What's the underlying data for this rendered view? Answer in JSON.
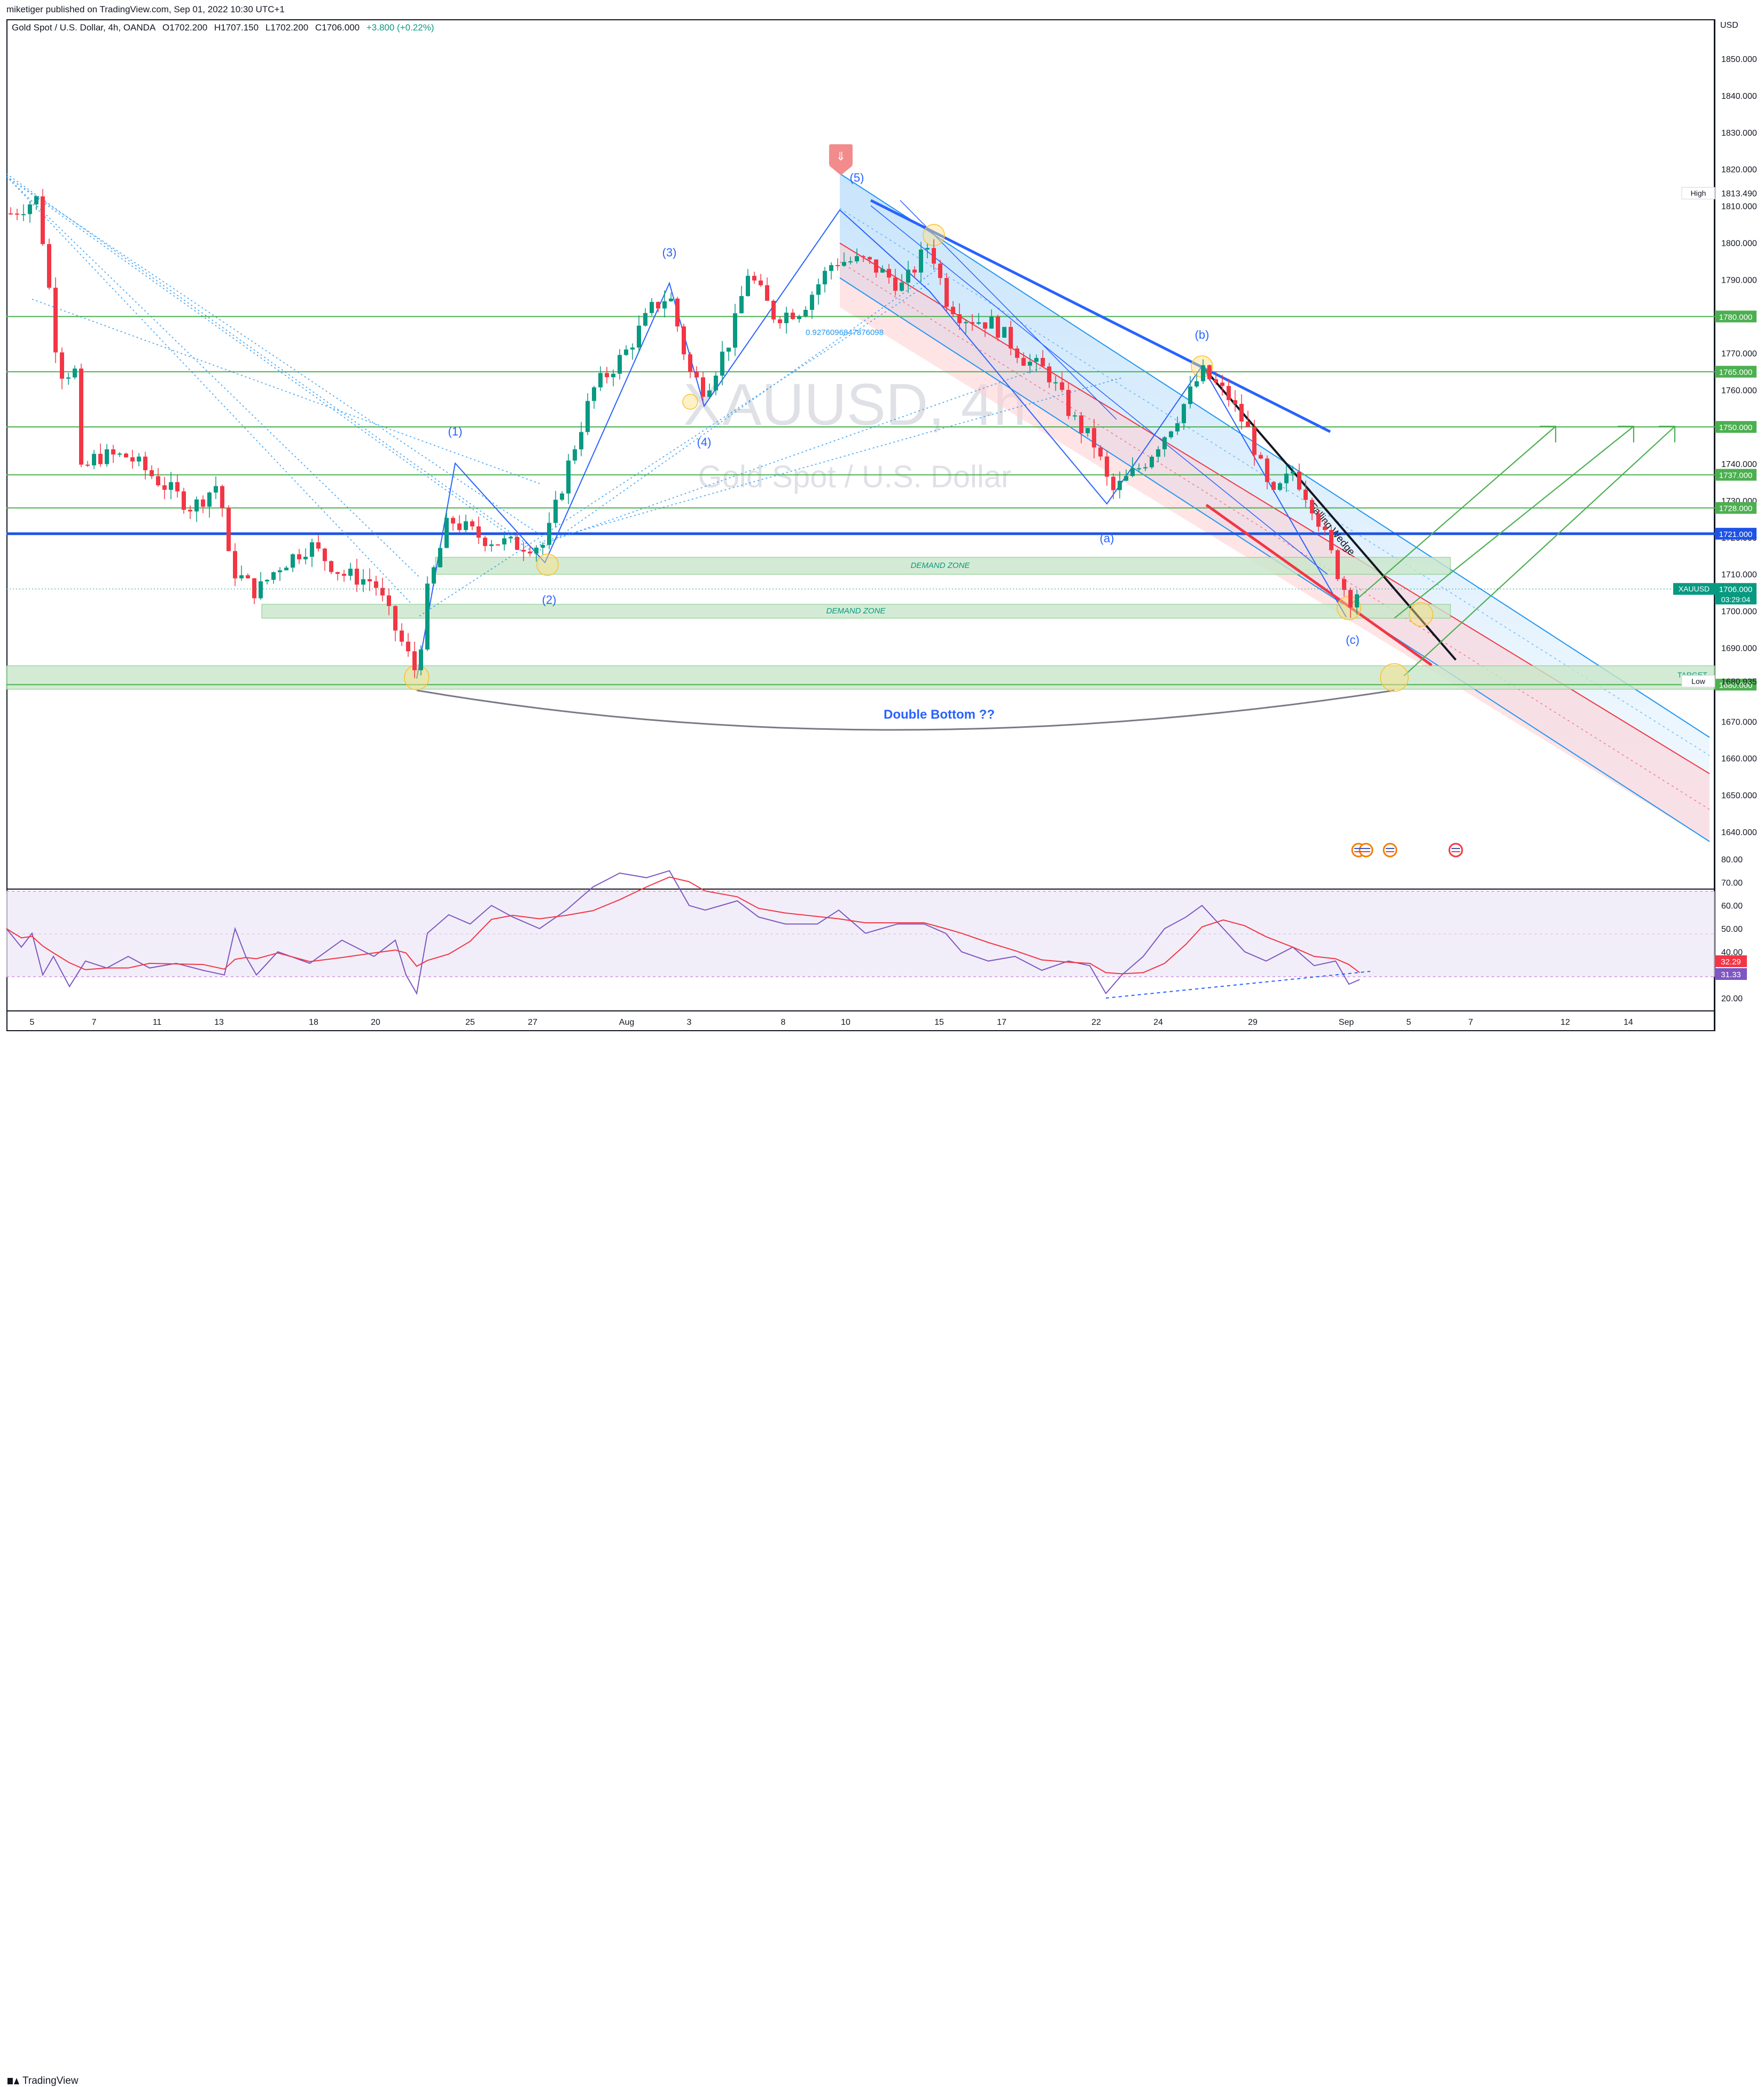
{
  "header": {
    "publisher_text": "miketiger published on TradingView.com, Sep 01, 2022 10:30 UTC+1"
  },
  "symbol_info": {
    "name": "Gold Spot / U.S. Dollar, 4h, OANDA",
    "open": "O1702.200",
    "high": "H1707.150",
    "low": "L1702.200",
    "close": "C1706.000",
    "change": "+3.800 (+0.22%)"
  },
  "watermark": {
    "ticker": "XAUUSD, 4h",
    "description": "Gold Spot / U.S. Dollar"
  },
  "price_axis": {
    "currency": "USD",
    "ticks": [
      "1850.000",
      "1840.000",
      "1830.000",
      "1820.000",
      "1810.000",
      "1800.000",
      "1790.000",
      "1780.000",
      "1770.000",
      "1760.000",
      "1750.000",
      "1740.000",
      "1730.000",
      "1720.000",
      "1710.000",
      "1700.000",
      "1690.000",
      "1680.000",
      "1670.000",
      "1660.000",
      "1650.000",
      "1640.000"
    ],
    "level_tags": [
      {
        "label": "1780.000",
        "value": 1780,
        "color": "#4caf50"
      },
      {
        "label": "1765.000",
        "value": 1765,
        "color": "#4caf50"
      },
      {
        "label": "1750.000",
        "value": 1750,
        "color": "#4caf50"
      },
      {
        "label": "1737.000",
        "value": 1737,
        "color": "#4caf50"
      },
      {
        "label": "1728.000",
        "value": 1728,
        "color": "#4caf50"
      },
      {
        "label": "1721.000",
        "value": 1721,
        "color": "#1e53e5"
      },
      {
        "label": "1680.000",
        "value": 1680,
        "color": "#4caf50"
      }
    ],
    "high_marker": {
      "label": "High",
      "value_text": "1813.490",
      "value": 1813.49
    },
    "low_marker": {
      "label": "Low",
      "value_text": "1680.935",
      "value": 1680.935
    },
    "current": {
      "label": "XAUUSD",
      "value_text": "1706.000",
      "countdown": "03:29:04",
      "value": 1706
    }
  },
  "rsi_axis": {
    "ticks": [
      "80.00",
      "70.00",
      "60.00",
      "50.00",
      "40.00",
      "30.00",
      "20.00"
    ],
    "rsi_tag": "32.29",
    "ma_tag": "31.33"
  },
  "time_axis": {
    "labels": [
      "5",
      "7",
      "11",
      "13",
      "18",
      "20",
      "25",
      "27",
      "Aug",
      "3",
      "8",
      "10",
      "15",
      "17",
      "22",
      "24",
      "29",
      "Sep",
      "5",
      "7",
      "12",
      "14"
    ]
  },
  "annotations": {
    "wave_1": "(1)",
    "wave_2": "(2)",
    "wave_3": "(3)",
    "wave_4": "(4)",
    "wave_5": "(5)",
    "wave_a": "(a)",
    "wave_b": "(b)",
    "wave_c": "(c)",
    "demand_zone_upper": "DEMAND ZONE",
    "demand_zone_lower": "DEMAND ZONE",
    "double_bottom": "Double Bottom ??",
    "falling_wedge": "Falling Wedge",
    "fib_value": "0.9276096847876098",
    "target_label": "TARGET"
  },
  "colors": {
    "bull": "#089981",
    "bear": "#f23645",
    "support_line": "#4caf50",
    "key_level": "#1e53e5",
    "wave_lines": "#2962ff",
    "channel_blue": "#2196f3",
    "channel_red": "#f23645",
    "zone_fill": "#c8e6c9",
    "rsi_line": "#7e57c2",
    "rsi_ma": "#f23645"
  },
  "footer": {
    "brand": "TradingView"
  }
}
